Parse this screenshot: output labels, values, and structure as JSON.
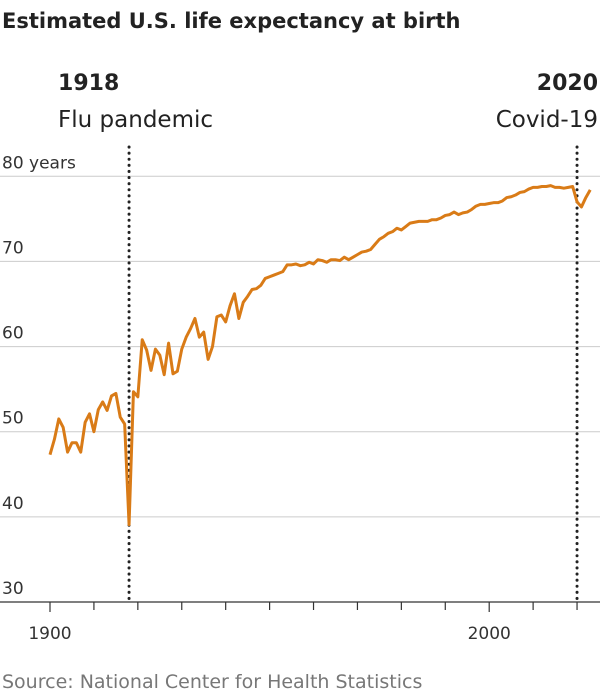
{
  "chart_data": {
    "type": "line",
    "title": "Estimated U.S. life expectancy at birth",
    "source": "Source: National Center for Health Statistics",
    "annotations": [
      {
        "x": 1918,
        "year": "1918",
        "label": "Flu pandemic"
      },
      {
        "x": 2020,
        "year": "2020",
        "label": "Covid-19"
      }
    ],
    "x": [
      1900,
      1901,
      1902,
      1903,
      1904,
      1905,
      1906,
      1907,
      1908,
      1909,
      1910,
      1911,
      1912,
      1913,
      1914,
      1915,
      1916,
      1917,
      1918,
      1919,
      1920,
      1921,
      1922,
      1923,
      1924,
      1925,
      1926,
      1927,
      1928,
      1929,
      1930,
      1931,
      1932,
      1933,
      1934,
      1935,
      1936,
      1937,
      1938,
      1939,
      1940,
      1941,
      1942,
      1943,
      1944,
      1945,
      1946,
      1947,
      1948,
      1949,
      1950,
      1951,
      1952,
      1953,
      1954,
      1955,
      1956,
      1957,
      1958,
      1959,
      1960,
      1961,
      1962,
      1963,
      1964,
      1965,
      1966,
      1967,
      1968,
      1969,
      1970,
      1971,
      1972,
      1973,
      1974,
      1975,
      1976,
      1977,
      1978,
      1979,
      1980,
      1981,
      1982,
      1983,
      1984,
      1985,
      1986,
      1987,
      1988,
      1989,
      1990,
      1991,
      1992,
      1993,
      1994,
      1995,
      1996,
      1997,
      1998,
      1999,
      2000,
      2001,
      2002,
      2003,
      2004,
      2005,
      2006,
      2007,
      2008,
      2009,
      2010,
      2011,
      2012,
      2013,
      2014,
      2015,
      2016,
      2017,
      2018,
      2019,
      2020,
      2021,
      2022,
      2023
    ],
    "series": [
      {
        "color": "#d97b17",
        "values": [
          47.3,
          49.1,
          51.5,
          50.5,
          47.6,
          48.7,
          48.7,
          47.6,
          51.1,
          52.1,
          50.0,
          52.6,
          53.5,
          52.5,
          54.2,
          54.5,
          51.7,
          50.9,
          39.1,
          54.7,
          54.1,
          60.8,
          59.6,
          57.2,
          59.7,
          59.0,
          56.7,
          60.4,
          56.8,
          57.1,
          59.7,
          61.1,
          62.1,
          63.3,
          61.1,
          61.7,
          58.5,
          60.0,
          63.5,
          63.7,
          62.9,
          64.8,
          66.2,
          63.3,
          65.2,
          65.9,
          66.7,
          66.8,
          67.2,
          68.0,
          68.2,
          68.4,
          68.6,
          68.8,
          69.6,
          69.6,
          69.7,
          69.5,
          69.6,
          69.9,
          69.7,
          70.2,
          70.1,
          69.9,
          70.2,
          70.2,
          70.1,
          70.5,
          70.2,
          70.5,
          70.8,
          71.1,
          71.2,
          71.4,
          72.0,
          72.6,
          72.9,
          73.3,
          73.5,
          73.9,
          73.7,
          74.1,
          74.5,
          74.6,
          74.7,
          74.7,
          74.7,
          74.9,
          74.9,
          75.1,
          75.4,
          75.5,
          75.8,
          75.5,
          75.7,
          75.8,
          76.1,
          76.5,
          76.7,
          76.7,
          76.8,
          76.9,
          76.9,
          77.1,
          77.5,
          77.6,
          77.8,
          78.1,
          78.2,
          78.5,
          78.7,
          78.7,
          78.8,
          78.8,
          78.9,
          78.7,
          78.7,
          78.6,
          78.7,
          78.8,
          77.0,
          76.4,
          77.5,
          78.4
        ]
      }
    ],
    "xlim": [
      1900,
      2025
    ],
    "ylim": [
      30,
      82.5
    ],
    "xticks": [
      1900,
      2000
    ],
    "x_minor_ticks": [
      1910,
      1920,
      1930,
      1940,
      1950,
      1960,
      1970,
      1980,
      1990,
      2010,
      2020
    ],
    "yticks": [
      30,
      40,
      50,
      60,
      70,
      {
        "value": 80,
        "label": "80 years"
      }
    ],
    "grid": true
  }
}
